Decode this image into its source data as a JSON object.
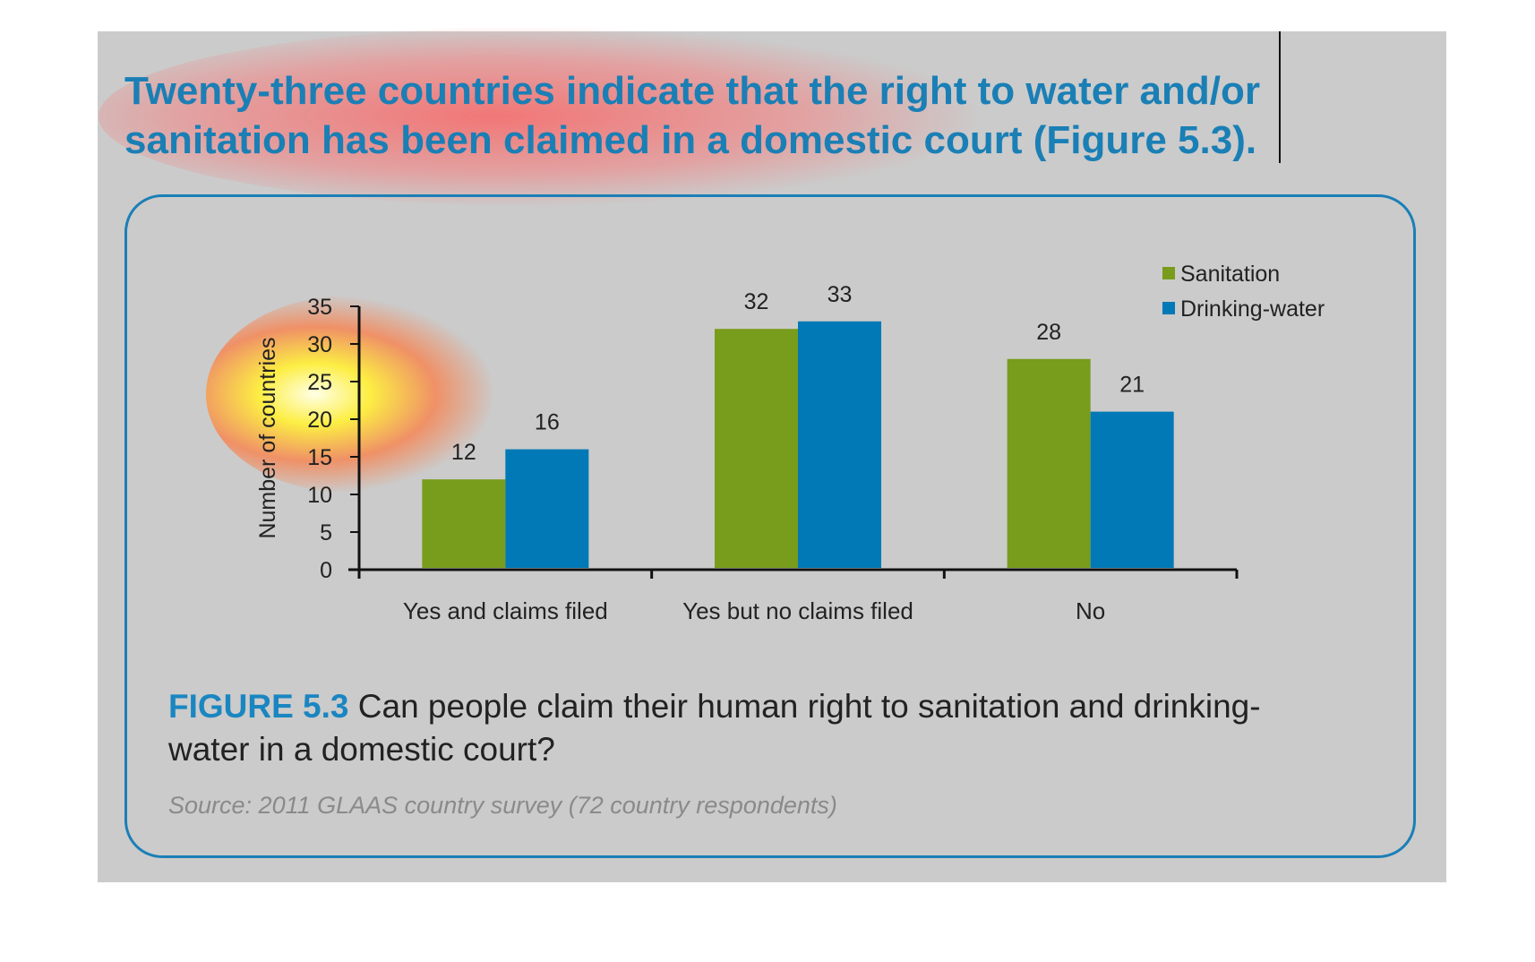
{
  "headline": "Twenty-three countries indicate that the right to water and/or sanitation has been claimed in a domestic court (Figure 5.3).",
  "caption": {
    "figure_label": "FIGURE 5.3",
    "text": "Can people claim their human right to sanitation and drinking-water in a domestic court?"
  },
  "source": "Source: 2011 GLAAS country survey (72 country respondents)",
  "colors": {
    "sanitation": "#789c1b",
    "drinking_water": "#0079b6",
    "accent": "#1a86c1"
  },
  "chart_data": {
    "type": "bar",
    "categories": [
      "Yes and claims filed",
      "Yes but no claims filed",
      "No"
    ],
    "series": [
      {
        "name": "Sanitation",
        "values": [
          12,
          32,
          28
        ]
      },
      {
        "name": "Drinking-water",
        "values": [
          16,
          33,
          21
        ]
      }
    ],
    "ylabel": "Number of countries",
    "xlabel": "",
    "ylim": [
      0,
      35
    ],
    "yticks": [
      0,
      5,
      10,
      15,
      20,
      25,
      30,
      35
    ],
    "legend": "top-right",
    "grid": false
  }
}
